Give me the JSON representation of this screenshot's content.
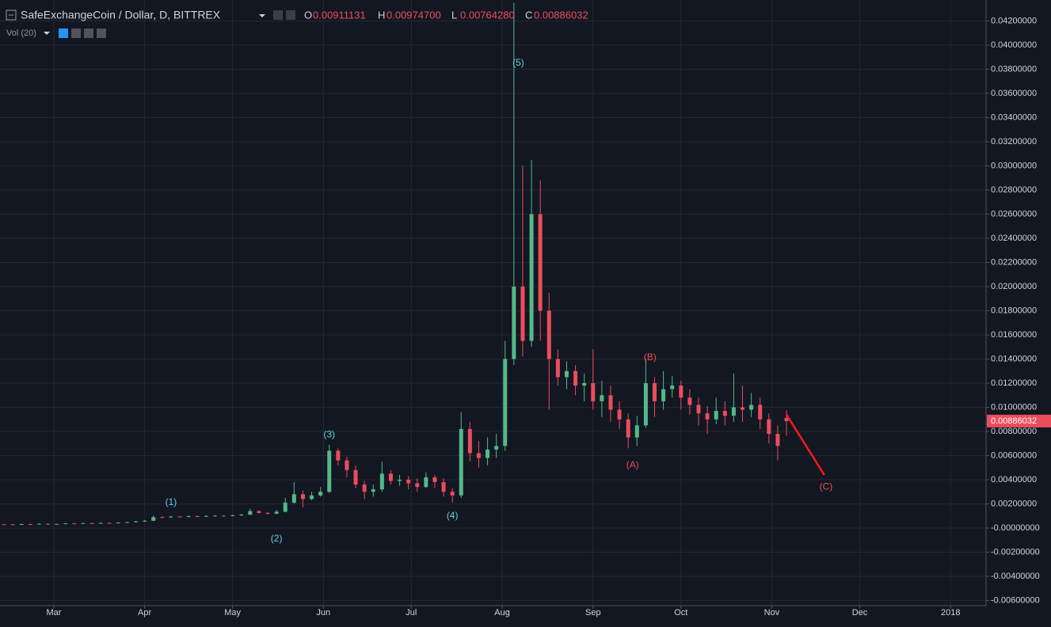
{
  "header": {
    "title": "SafeExchangeCoin / Dollar, D, BITTREX",
    "ohlc": [
      {
        "key": "O",
        "value": "0.00911131"
      },
      {
        "key": "H",
        "value": "0.00974700"
      },
      {
        "key": "L",
        "value": "0.00764280"
      },
      {
        "key": "C",
        "value": "0.00886032"
      }
    ],
    "indicator": "Vol (20)"
  },
  "chart_data": {
    "type": "candlestick",
    "up_color": "#53b987",
    "down_color": "#eb4d5c",
    "grid": true,
    "xlim": [
      -0.45,
      111.7
    ],
    "xticks": [
      {
        "value": 5.67,
        "label": "Mar"
      },
      {
        "value": 16,
        "label": "Apr"
      },
      {
        "value": 26,
        "label": "May"
      },
      {
        "value": 36.33,
        "label": "Jun"
      },
      {
        "value": 46.33,
        "label": "Jul"
      },
      {
        "value": 56.67,
        "label": "Aug"
      },
      {
        "value": 67,
        "label": "Sep"
      },
      {
        "value": 77,
        "label": "Oct"
      },
      {
        "value": 87.33,
        "label": "Nov"
      },
      {
        "value": 97.33,
        "label": "Dec"
      },
      {
        "value": 107.67,
        "label": "2018"
      }
    ],
    "ylim": [
      -0.00643,
      0.04374
    ],
    "yticks": [
      {
        "value": -0.006,
        "label": "-0.00600000"
      },
      {
        "value": -0.004,
        "label": "-0.00400000"
      },
      {
        "value": -0.002,
        "label": "-0.00200000"
      },
      {
        "value": 0,
        "label": "-0.00000000"
      },
      {
        "value": 0.002,
        "label": "0.00200000"
      },
      {
        "value": 0.004,
        "label": "0.00400000"
      },
      {
        "value": 0.006,
        "label": "0.00600000"
      },
      {
        "value": 0.008,
        "label": "0.00800000"
      },
      {
        "value": 0.01,
        "label": "0.01000000"
      },
      {
        "value": 0.012,
        "label": "0.01200000"
      },
      {
        "value": 0.014,
        "label": "0.01400000"
      },
      {
        "value": 0.016,
        "label": "0.01600000"
      },
      {
        "value": 0.018,
        "label": "0.01800000"
      },
      {
        "value": 0.02,
        "label": "0.02000000"
      },
      {
        "value": 0.022,
        "label": "0.02200000"
      },
      {
        "value": 0.024,
        "label": "0.02400000"
      },
      {
        "value": 0.026,
        "label": "0.02600000"
      },
      {
        "value": 0.028,
        "label": "0.02800000"
      },
      {
        "value": 0.03,
        "label": "0.03000000"
      },
      {
        "value": 0.032,
        "label": "0.03200000"
      },
      {
        "value": 0.034,
        "label": "0.03400000"
      },
      {
        "value": 0.036,
        "label": "0.03600000"
      },
      {
        "value": 0.038,
        "label": "0.03800000"
      },
      {
        "value": 0.04,
        "label": "0.04000000"
      },
      {
        "value": 0.042,
        "label": "0.04200000"
      }
    ],
    "open": [
      0.00031,
      0.0003,
      0.00028,
      0.00032,
      0.00031,
      0.00035,
      0.00033,
      0.00034,
      0.00038,
      0.00036,
      0.0004,
      0.00039,
      0.00042,
      0.00041,
      0.00045,
      0.00048,
      0.00055,
      0.0006,
      0.0009,
      0.00088,
      0.00095,
      0.00092,
      0.00098,
      0.00096,
      0.001,
      0.00102,
      0.00099,
      0.00105,
      0.0011,
      0.0014,
      0.00125,
      0.00118,
      0.00135,
      0.0021,
      0.0028,
      0.0024,
      0.0027,
      0.003,
      0.0064,
      0.0056,
      0.0048,
      0.0036,
      0.003,
      0.0032,
      0.0045,
      0.0039,
      0.004,
      0.0037,
      0.0034,
      0.0042,
      0.0038,
      0.003,
      0.0027,
      0.0082,
      0.0062,
      0.0058,
      0.0065,
      0.0068,
      0.014,
      0.02,
      0.0155,
      0.026,
      0.018,
      0.014,
      0.0125,
      0.013,
      0.0118,
      0.012,
      0.0105,
      0.011,
      0.0098,
      0.009,
      0.0075,
      0.0085,
      0.012,
      0.0105,
      0.0115,
      0.0118,
      0.0108,
      0.0102,
      0.0095,
      0.009,
      0.0097,
      0.0093,
      0.01,
      0.0098,
      0.0102,
      0.009,
      0.0078,
      0.00911131
    ],
    "high": [
      0.00034,
      0.00032,
      0.00034,
      0.00035,
      0.00037,
      0.00037,
      0.00036,
      0.0004,
      0.0004,
      0.00042,
      0.00043,
      0.00045,
      0.00044,
      0.00048,
      0.00052,
      0.00058,
      0.00065,
      0.00105,
      0.00096,
      0.001,
      0.00099,
      0.00104,
      0.00102,
      0.00106,
      0.00108,
      0.00105,
      0.0011,
      0.00118,
      0.0016,
      0.00145,
      0.0013,
      0.0015,
      0.0025,
      0.0038,
      0.0031,
      0.003,
      0.0034,
      0.0069,
      0.0066,
      0.0059,
      0.0052,
      0.0039,
      0.0036,
      0.0055,
      0.0048,
      0.0044,
      0.0043,
      0.0041,
      0.0046,
      0.0044,
      0.0041,
      0.0033,
      0.0096,
      0.0088,
      0.0072,
      0.0075,
      0.0078,
      0.0155,
      0.0435,
      0.03,
      0.0305,
      0.0288,
      0.0195,
      0.0148,
      0.0138,
      0.0135,
      0.0128,
      0.0148,
      0.0122,
      0.0118,
      0.0105,
      0.0095,
      0.0093,
      0.014,
      0.0125,
      0.013,
      0.0126,
      0.0122,
      0.0115,
      0.0108,
      0.0101,
      0.0108,
      0.0105,
      0.0128,
      0.0118,
      0.0112,
      0.0108,
      0.0095,
      0.0085,
      0.009747
    ],
    "low": [
      0.00027,
      0.00026,
      0.00027,
      0.00029,
      0.0003,
      0.00031,
      0.00031,
      0.00033,
      0.00034,
      0.00035,
      0.00037,
      0.00038,
      0.00039,
      0.0004,
      0.00044,
      0.00046,
      0.00052,
      0.00058,
      0.00084,
      0.00085,
      0.00088,
      0.0009,
      0.00092,
      0.00094,
      0.00097,
      0.00095,
      0.00097,
      0.00102,
      0.00108,
      0.0012,
      0.0011,
      0.00115,
      0.0013,
      0.002,
      0.0017,
      0.0023,
      0.0026,
      0.0029,
      0.0052,
      0.0042,
      0.0033,
      0.0024,
      0.0026,
      0.003,
      0.0036,
      0.0035,
      0.0032,
      0.003,
      0.0033,
      0.0033,
      0.0026,
      0.0021,
      0.0025,
      0.0055,
      0.005,
      0.0052,
      0.0058,
      0.0064,
      0.0135,
      0.0142,
      0.015,
      0.0155,
      0.0098,
      0.0118,
      0.0115,
      0.011,
      0.0105,
      0.0098,
      0.0092,
      0.0088,
      0.0082,
      0.0066,
      0.0068,
      0.0083,
      0.0092,
      0.0098,
      0.0108,
      0.0098,
      0.0094,
      0.0085,
      0.0078,
      0.0086,
      0.0085,
      0.0088,
      0.0088,
      0.0092,
      0.0082,
      0.007,
      0.0056,
      0.0076428
    ],
    "close": [
      0.0003,
      0.00028,
      0.00032,
      0.00031,
      0.00035,
      0.00033,
      0.00034,
      0.00038,
      0.00036,
      0.0004,
      0.00039,
      0.00042,
      0.00041,
      0.00045,
      0.00048,
      0.00055,
      0.0006,
      0.0009,
      0.00088,
      0.00095,
      0.00092,
      0.00098,
      0.00096,
      0.001,
      0.00102,
      0.00099,
      0.00105,
      0.0011,
      0.0014,
      0.00125,
      0.00118,
      0.00135,
      0.0021,
      0.0028,
      0.0024,
      0.0027,
      0.003,
      0.0064,
      0.0056,
      0.0048,
      0.0036,
      0.003,
      0.0032,
      0.0045,
      0.0039,
      0.004,
      0.0037,
      0.0034,
      0.0042,
      0.0038,
      0.003,
      0.0027,
      0.0082,
      0.0062,
      0.0058,
      0.0065,
      0.0068,
      0.014,
      0.02,
      0.0155,
      0.026,
      0.018,
      0.014,
      0.0125,
      0.013,
      0.0118,
      0.012,
      0.0105,
      0.011,
      0.0098,
      0.009,
      0.0075,
      0.0085,
      0.012,
      0.0105,
      0.0115,
      0.0118,
      0.0108,
      0.0102,
      0.0095,
      0.009,
      0.0097,
      0.0093,
      0.01,
      0.0098,
      0.0102,
      0.009,
      0.0078,
      0.0068,
      0.00886032
    ],
    "last_price_label": "0.00886032",
    "annotations": [
      {
        "text": "(1)",
        "x": 19,
        "y": 0.0021,
        "color": "#5dd6e0"
      },
      {
        "text": "(2)",
        "x": 31,
        "y": -0.0009,
        "color": "#5dd6e0"
      },
      {
        "text": "(3)",
        "x": 37,
        "y": 0.0077,
        "color": "#5dd6e0"
      },
      {
        "text": "(4)",
        "x": 51,
        "y": 0.001,
        "color": "#5dd6e0"
      },
      {
        "text": "(5)",
        "x": 58.5,
        "y": 0.0385,
        "color": "#5dd6e0"
      },
      {
        "text": "(A)",
        "x": 71.5,
        "y": 0.0052,
        "color": "#eb4d5c"
      },
      {
        "text": "(B)",
        "x": 73.5,
        "y": 0.0141,
        "color": "#eb4d5c"
      },
      {
        "text": "(C)",
        "x": 93.5,
        "y": 0.0034,
        "color": "#eb4d5c"
      }
    ],
    "projection": {
      "x": [
        89,
        93.3
      ],
      "y": [
        0.0094,
        0.0044
      ],
      "color": "#ff1a1a"
    }
  }
}
